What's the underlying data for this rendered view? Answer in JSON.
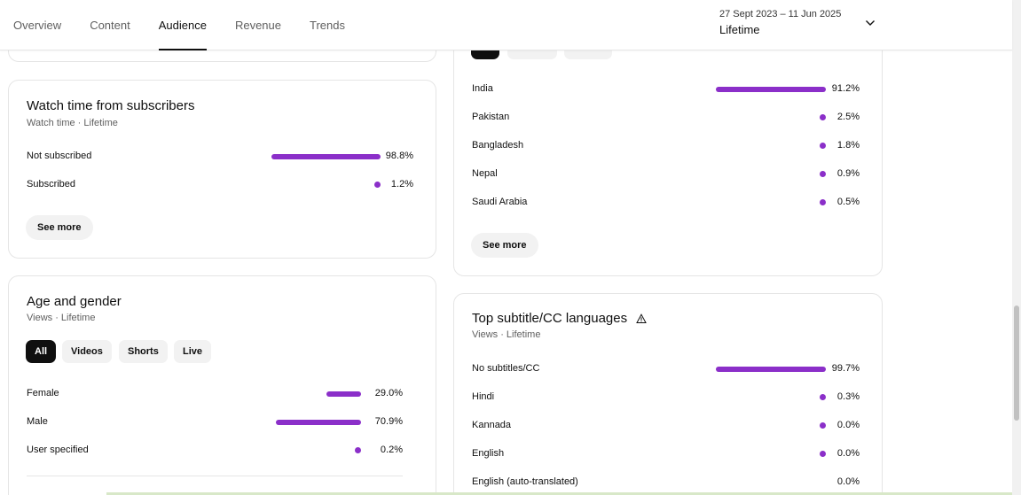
{
  "tabs": [
    {
      "label": "Overview",
      "active": false
    },
    {
      "label": "Content",
      "active": false
    },
    {
      "label": "Audience",
      "active": true
    },
    {
      "label": "Revenue",
      "active": false
    },
    {
      "label": "Trends",
      "active": false
    }
  ],
  "date_range": {
    "range": "27 Sept 2023 – 11 Jun 2025",
    "label": "Lifetime"
  },
  "accent_color": "#8b2fc9",
  "subscribers_card": {
    "title": "Watch time from subscribers",
    "subtitle": "Watch time · Lifetime",
    "rows": [
      {
        "label": "Not subscribed",
        "value": "98.8%",
        "share": 0.988
      },
      {
        "label": "Subscribed",
        "value": "1.2%",
        "share": 0.012
      }
    ],
    "see_more": "See more"
  },
  "age_gender_card": {
    "title": "Age and gender",
    "subtitle": "Views · Lifetime",
    "chips": [
      {
        "label": "All",
        "active": true
      },
      {
        "label": "Videos",
        "active": false
      },
      {
        "label": "Shorts",
        "active": false
      },
      {
        "label": "Live",
        "active": false
      }
    ],
    "rows": [
      {
        "label": "Female",
        "value": "29.0%",
        "share": 0.29
      },
      {
        "label": "Male",
        "value": "70.9%",
        "share": 0.709
      },
      {
        "label": "User specified",
        "value": "0.2%",
        "share": 0.002
      }
    ]
  },
  "geography_card": {
    "rows": [
      {
        "label": "India",
        "value": "91.2%",
        "share": 0.912
      },
      {
        "label": "Pakistan",
        "value": "2.5%",
        "share": 0.025
      },
      {
        "label": "Bangladesh",
        "value": "1.8%",
        "share": 0.018
      },
      {
        "label": "Nepal",
        "value": "0.9%",
        "share": 0.009
      },
      {
        "label": "Saudi Arabia",
        "value": "0.5%",
        "share": 0.005
      }
    ],
    "see_more": "See more"
  },
  "subtitle_card": {
    "title": "Top subtitle/CC languages",
    "subtitle": "Views · Lifetime",
    "rows": [
      {
        "label": "No subtitles/CC",
        "value": "99.7%",
        "share": 0.997
      },
      {
        "label": "Hindi",
        "value": "0.3%",
        "share": 0.003
      },
      {
        "label": "Kannada",
        "value": "0.0%",
        "share": 0.0
      },
      {
        "label": "English",
        "value": "0.0%",
        "share": 0.0
      },
      {
        "label": "English (auto-translated)",
        "value": "0.0%",
        "share": 0.0
      }
    ]
  }
}
